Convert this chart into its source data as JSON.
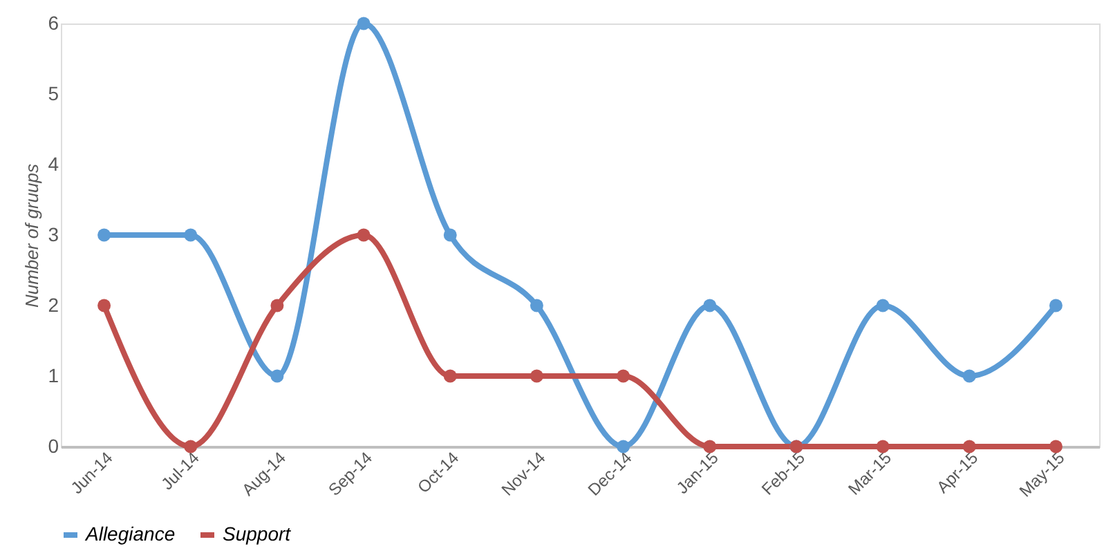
{
  "chart_data": {
    "type": "line",
    "ylabel": "Number of gruups",
    "categories": [
      "Jun-14",
      "Jul-14",
      "Aug-14",
      "Sep-14",
      "Oct-14",
      "Nov-14",
      "Dec-14",
      "Jan-15",
      "Feb-15",
      "Mar-15",
      "Apr-15",
      "May-15"
    ],
    "series": [
      {
        "name": "Allegiance",
        "color": "#5b9bd5",
        "values": [
          3,
          3,
          1,
          6,
          3,
          2,
          0,
          2,
          0,
          2,
          1,
          2
        ]
      },
      {
        "name": "Support",
        "color": "#c0504d",
        "values": [
          2,
          0,
          2,
          3,
          1,
          1,
          1,
          0,
          0,
          0,
          0,
          0
        ]
      }
    ],
    "ylim": [
      0,
      6
    ],
    "yticks": [
      0,
      1,
      2,
      3,
      4,
      5,
      6
    ],
    "grid": false,
    "legend": "bottom",
    "marker": "circle",
    "line_style": "solid"
  }
}
